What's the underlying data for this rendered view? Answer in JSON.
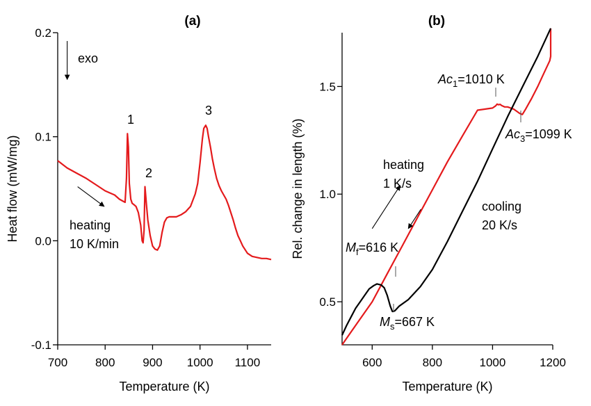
{
  "chart_data": [
    {
      "type": "line",
      "panel_label": "(a)",
      "xlabel": "Temperature (K)",
      "ylabel": "Heat flow (mW/mg)",
      "xlim": [
        700,
        1150
      ],
      "ylim": [
        -0.1,
        0.2
      ],
      "xticks": [
        700,
        800,
        900,
        1000,
        1100
      ],
      "yticks": [
        -0.1,
        0.0,
        0.1,
        0.2
      ],
      "ytick_labels": [
        "-0.1",
        "0.0",
        "0.1",
        "0.2"
      ],
      "grid": false,
      "series": [
        {
          "color": "#e41a1c",
          "x": [
            700,
            720,
            740,
            760,
            780,
            790,
            800,
            810,
            820,
            830,
            838,
            842,
            845,
            847,
            849,
            851,
            854,
            857,
            860,
            865,
            870,
            875,
            878,
            880,
            882,
            884,
            887,
            890,
            895,
            900,
            905,
            910,
            915,
            920,
            925,
            930,
            935,
            940,
            950,
            960,
            970,
            980,
            990,
            995,
            1000,
            1005,
            1008,
            1012,
            1015,
            1018,
            1022,
            1026,
            1030,
            1035,
            1040,
            1045,
            1050,
            1055,
            1060,
            1065,
            1070,
            1075,
            1080,
            1085,
            1090,
            1100,
            1110,
            1120,
            1130,
            1140,
            1150
          ],
          "y": [
            0.077,
            0.07,
            0.065,
            0.06,
            0.054,
            0.051,
            0.048,
            0.046,
            0.044,
            0.04,
            0.038,
            0.037,
            0.06,
            0.103,
            0.09,
            0.055,
            0.04,
            0.036,
            0.035,
            0.033,
            0.027,
            0.015,
            0.0,
            -0.002,
            0.01,
            0.052,
            0.035,
            0.02,
            0.005,
            -0.005,
            -0.008,
            -0.009,
            -0.005,
            0.008,
            0.018,
            0.022,
            0.023,
            0.023,
            0.023,
            0.025,
            0.028,
            0.033,
            0.045,
            0.055,
            0.075,
            0.098,
            0.108,
            0.111,
            0.108,
            0.1,
            0.09,
            0.079,
            0.07,
            0.06,
            0.053,
            0.048,
            0.044,
            0.04,
            0.034,
            0.027,
            0.02,
            0.012,
            0.005,
            0.0,
            -0.005,
            -0.012,
            -0.015,
            -0.016,
            -0.017,
            -0.017,
            -0.018
          ]
        }
      ],
      "annotations": [
        {
          "text": "1",
          "x": 845,
          "y": 0.113
        },
        {
          "text": "2",
          "x": 881,
          "y": 0.061
        },
        {
          "text": "3",
          "x": 1013,
          "y": 0.121
        },
        {
          "text": "exo",
          "x": 738,
          "y": 0.175
        },
        {
          "text": "heating",
          "x": 700,
          "y": 0.014
        },
        {
          "text": "10 K/min",
          "x": 700,
          "y": -0.004
        }
      ],
      "arrows": [
        {
          "from": [
            720,
            0.192
          ],
          "to": [
            720,
            0.155
          ]
        },
        {
          "from": [
            742,
            0.052
          ],
          "to": [
            798,
            0.033
          ]
        }
      ]
    },
    {
      "type": "line",
      "panel_label": "(b)",
      "xlabel": "Temperature (K)",
      "ylabel": "Rel. change in length (%)",
      "xlim": [
        500,
        1200
      ],
      "ylim": [
        0.3,
        1.75
      ],
      "xticks": [
        600,
        800,
        1000,
        1200
      ],
      "yticks": [
        0.5,
        1.0,
        1.5
      ],
      "ytick_labels": [
        "0.5",
        "1.0",
        "1.5"
      ],
      "grid": false,
      "series": [
        {
          "color": "#e41a1c",
          "x": [
            500,
            550,
            600,
            650,
            700,
            750,
            800,
            850,
            900,
            950,
            1000,
            1010,
            1015,
            1020,
            1025,
            1030,
            1040,
            1050,
            1060,
            1070,
            1080,
            1090,
            1099,
            1110,
            1130,
            1150,
            1170,
            1190,
            1193,
            1193
          ],
          "y": [
            0.3,
            0.4,
            0.5,
            0.63,
            0.76,
            0.89,
            1.02,
            1.15,
            1.27,
            1.39,
            1.4,
            1.41,
            1.418,
            1.415,
            1.417,
            1.412,
            1.405,
            1.405,
            1.4,
            1.395,
            1.385,
            1.375,
            1.37,
            1.395,
            1.445,
            1.5,
            1.56,
            1.62,
            1.64,
            1.77
          ]
        },
        {
          "color": "#000000",
          "x": [
            1193,
            1150,
            1100,
            1050,
            1000,
            950,
            900,
            850,
            800,
            760,
            720,
            690,
            680,
            675,
            670,
            667,
            660,
            650,
            640,
            630,
            616,
            605,
            590,
            575,
            560,
            545,
            530,
            515,
            500
          ],
          "y": [
            1.77,
            1.64,
            1.5,
            1.36,
            1.21,
            1.06,
            0.92,
            0.78,
            0.65,
            0.57,
            0.51,
            0.48,
            0.465,
            0.458,
            0.455,
            0.455,
            0.48,
            0.53,
            0.565,
            0.578,
            0.583,
            0.575,
            0.56,
            0.53,
            0.5,
            0.47,
            0.43,
            0.39,
            0.345
          ]
        }
      ],
      "annotations": [
        {
          "text": "Ac",
          "sub": "1",
          "value": "=1010 K",
          "x": 1010,
          "y": 1.42
        },
        {
          "text": "Ac",
          "sub": "3",
          "value": "=1099 K",
          "x": 1099,
          "y": 1.37
        },
        {
          "text": "M",
          "sub": "f",
          "value": "=616 K",
          "x": 616,
          "y": 0.583
        },
        {
          "text": "M",
          "sub": "s",
          "value": "=667 K",
          "x": 667,
          "y": 0.455
        },
        {
          "text": "heating",
          "x": 620,
          "y": 1.1
        },
        {
          "text": "1 K/s",
          "x": 620,
          "y": 1.02
        },
        {
          "text": "cooling",
          "x": 770,
          "y": 0.89
        },
        {
          "text": "20 K/s",
          "x": 770,
          "y": 0.81
        }
      ],
      "arrows": [
        {
          "from": [
            600,
            0.84
          ],
          "to": [
            693,
            1.04
          ]
        },
        {
          "from": [
            762,
            0.93
          ],
          "to": [
            720,
            0.84
          ]
        }
      ]
    }
  ]
}
